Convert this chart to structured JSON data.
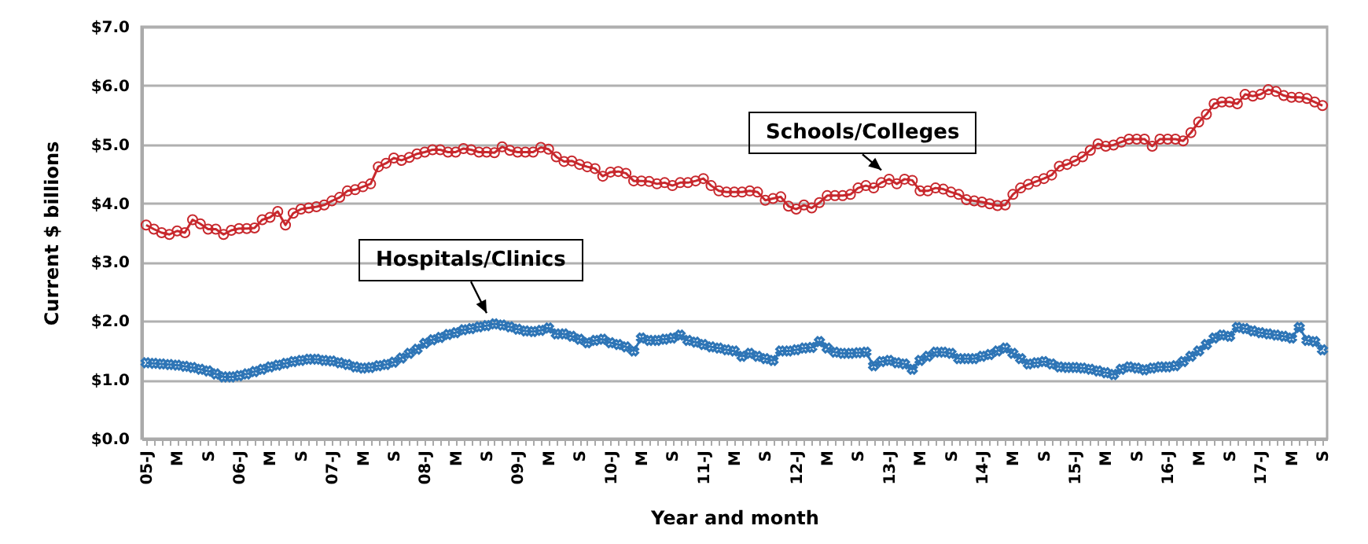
{
  "chart_data": {
    "type": "line",
    "xlabel": "Year and month",
    "ylabel": "Current $ billions",
    "categories": [
      "05-J",
      null,
      null,
      null,
      "M",
      null,
      null,
      null,
      "S",
      null,
      null,
      null,
      "06-J",
      null,
      null,
      null,
      "M",
      null,
      null,
      null,
      "S",
      null,
      null,
      null,
      "07-J",
      null,
      null,
      null,
      "M",
      null,
      null,
      null,
      "S",
      null,
      null,
      null,
      "08-J",
      null,
      null,
      null,
      "M",
      null,
      null,
      null,
      "S",
      null,
      null,
      null,
      "09-J",
      null,
      null,
      null,
      "M",
      null,
      null,
      null,
      "S",
      null,
      null,
      null,
      "10-J",
      null,
      null,
      null,
      "M",
      null,
      null,
      null,
      "S",
      null,
      null,
      null,
      "11-J",
      null,
      null,
      null,
      "M",
      null,
      null,
      null,
      "S",
      null,
      null,
      null,
      "12-J",
      null,
      null,
      null,
      "M",
      null,
      null,
      null,
      "S",
      null,
      null,
      null,
      "13-J",
      null,
      null,
      null,
      "M",
      null,
      null,
      null,
      "S",
      null,
      null,
      null,
      "14-J",
      null,
      null,
      null,
      "M",
      null,
      null,
      null,
      "S",
      null,
      null,
      null,
      "15-J",
      null,
      null,
      null,
      "M",
      null,
      null,
      null,
      "S",
      null,
      null,
      null,
      "16-J",
      null,
      null,
      null,
      "M",
      null,
      null,
      null,
      "S",
      null,
      null,
      null,
      "17-J",
      null,
      null,
      null,
      "M",
      null,
      null,
      null,
      "S"
    ],
    "series": [
      {
        "name": "Schools/Colleges",
        "color": "#c8282d",
        "marker": "circle",
        "values": [
          3.63,
          3.56,
          3.5,
          3.47,
          3.53,
          3.5,
          3.72,
          3.65,
          3.56,
          3.56,
          3.47,
          3.54,
          3.57,
          3.57,
          3.58,
          3.72,
          3.76,
          3.86,
          3.63,
          3.83,
          3.9,
          3.92,
          3.94,
          3.97,
          4.04,
          4.1,
          4.21,
          4.23,
          4.28,
          4.33,
          4.62,
          4.68,
          4.77,
          4.73,
          4.78,
          4.84,
          4.87,
          4.91,
          4.91,
          4.87,
          4.87,
          4.93,
          4.91,
          4.87,
          4.87,
          4.86,
          4.96,
          4.9,
          4.87,
          4.87,
          4.87,
          4.95,
          4.92,
          4.79,
          4.71,
          4.72,
          4.66,
          4.62,
          4.59,
          4.46,
          4.53,
          4.54,
          4.51,
          4.38,
          4.38,
          4.37,
          4.33,
          4.35,
          4.3,
          4.35,
          4.35,
          4.38,
          4.42,
          4.3,
          4.21,
          4.19,
          4.19,
          4.19,
          4.21,
          4.19,
          4.05,
          4.08,
          4.11,
          3.95,
          3.9,
          3.97,
          3.92,
          4.01,
          4.13,
          4.13,
          4.13,
          4.15,
          4.26,
          4.3,
          4.26,
          4.35,
          4.41,
          4.33,
          4.41,
          4.39,
          4.21,
          4.21,
          4.26,
          4.24,
          4.19,
          4.15,
          4.06,
          4.04,
          4.02,
          3.99,
          3.96,
          3.97,
          4.15,
          4.26,
          4.32,
          4.37,
          4.42,
          4.48,
          4.63,
          4.66,
          4.72,
          4.79,
          4.9,
          5.01,
          4.97,
          4.99,
          5.04,
          5.09,
          5.09,
          5.09,
          4.97,
          5.09,
          5.09,
          5.09,
          5.06,
          5.2,
          5.38,
          5.51,
          5.69,
          5.72,
          5.72,
          5.69,
          5.85,
          5.82,
          5.85,
          5.93,
          5.9,
          5.83,
          5.8,
          5.8,
          5.78,
          5.72,
          5.66
        ]
      },
      {
        "name": "Hospitals/Clinics",
        "color": "#2e75b6",
        "marker": "cross",
        "values": [
          1.29,
          1.28,
          1.27,
          1.26,
          1.25,
          1.23,
          1.21,
          1.18,
          1.15,
          1.1,
          1.05,
          1.05,
          1.07,
          1.1,
          1.14,
          1.18,
          1.22,
          1.25,
          1.28,
          1.31,
          1.33,
          1.35,
          1.35,
          1.33,
          1.32,
          1.29,
          1.26,
          1.22,
          1.2,
          1.21,
          1.24,
          1.26,
          1.3,
          1.37,
          1.45,
          1.52,
          1.62,
          1.68,
          1.72,
          1.77,
          1.8,
          1.85,
          1.87,
          1.9,
          1.92,
          1.95,
          1.93,
          1.9,
          1.86,
          1.83,
          1.82,
          1.84,
          1.88,
          1.78,
          1.78,
          1.74,
          1.69,
          1.63,
          1.67,
          1.69,
          1.63,
          1.6,
          1.56,
          1.49,
          1.71,
          1.67,
          1.67,
          1.69,
          1.71,
          1.76,
          1.67,
          1.64,
          1.6,
          1.56,
          1.54,
          1.51,
          1.49,
          1.4,
          1.45,
          1.4,
          1.36,
          1.33,
          1.49,
          1.49,
          1.51,
          1.54,
          1.55,
          1.65,
          1.54,
          1.47,
          1.45,
          1.45,
          1.46,
          1.47,
          1.24,
          1.31,
          1.33,
          1.29,
          1.27,
          1.18,
          1.33,
          1.4,
          1.47,
          1.47,
          1.45,
          1.36,
          1.36,
          1.36,
          1.4,
          1.43,
          1.49,
          1.54,
          1.45,
          1.36,
          1.27,
          1.29,
          1.31,
          1.27,
          1.22,
          1.21,
          1.21,
          1.2,
          1.18,
          1.15,
          1.12,
          1.09,
          1.18,
          1.22,
          1.2,
          1.17,
          1.2,
          1.22,
          1.22,
          1.24,
          1.31,
          1.4,
          1.49,
          1.6,
          1.71,
          1.76,
          1.74,
          1.89,
          1.87,
          1.83,
          1.8,
          1.78,
          1.76,
          1.74,
          1.71,
          1.89,
          1.67,
          1.65,
          1.51
        ]
      }
    ],
    "ylim": [
      0,
      7
    ],
    "yticks": [
      {
        "value": 0,
        "label": "$0.0"
      },
      {
        "value": 1,
        "label": "$1.0"
      },
      {
        "value": 2,
        "label": "$2.0"
      },
      {
        "value": 3,
        "label": "$3.0"
      },
      {
        "value": 4,
        "label": "$4.0"
      },
      {
        "value": 5,
        "label": "$5.0"
      },
      {
        "value": 6,
        "label": "$6.0"
      },
      {
        "value": 7,
        "label": "$7.0"
      }
    ],
    "grid": "y"
  }
}
